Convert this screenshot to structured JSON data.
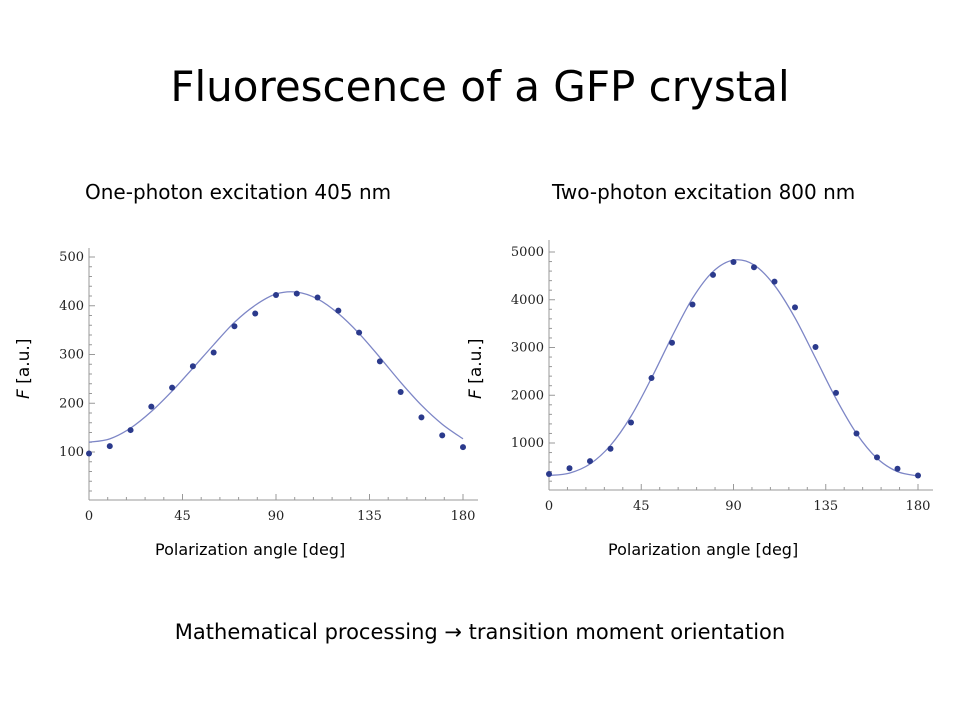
{
  "slide": {
    "title": "Fluorescence of a GFP crystal",
    "footer": "Mathematical processing → transition moment orientation"
  },
  "chart_data": [
    {
      "type": "scatter",
      "title": "One-photon excitation 405 nm",
      "xlabel": "Polarization angle [deg]",
      "ylabel_var": "F",
      "ylabel_unit": "[a.u.]",
      "xlim": [
        0,
        180
      ],
      "ylim": [
        0,
        500
      ],
      "xticks": [
        0,
        45,
        90,
        135,
        180
      ],
      "yticks": [
        100,
        200,
        300,
        400,
        500
      ],
      "grid": false,
      "points": {
        "x": [
          0,
          10,
          20,
          30,
          40,
          50,
          60,
          70,
          80,
          90,
          100,
          110,
          120,
          130,
          140,
          150,
          160,
          170,
          180
        ],
        "y": [
          97,
          112,
          145,
          193,
          232,
          276,
          304,
          358,
          384,
          422,
          425,
          417,
          390,
          345,
          286,
          223,
          171,
          134,
          110
        ]
      },
      "fit_curve": {
        "x": [
          0,
          10,
          20,
          30,
          40,
          50,
          60,
          70,
          80,
          90,
          100,
          110,
          120,
          130,
          140,
          150,
          160,
          170,
          180
        ],
        "y": [
          120,
          127,
          149,
          183,
          225,
          272,
          320,
          366,
          401,
          424,
          428,
          414,
          384,
          343,
          294,
          243,
          196,
          157,
          127
        ]
      },
      "colors": {
        "points": "#2b3a8c",
        "curve": "#7d86c6"
      }
    },
    {
      "type": "scatter",
      "title": "Two-photon excitation 800 nm",
      "xlabel": "Polarization angle [deg]",
      "ylabel_var": "F",
      "ylabel_unit": "[a.u.]",
      "xlim": [
        0,
        180
      ],
      "ylim": [
        0,
        5000
      ],
      "xticks": [
        0,
        45,
        90,
        135,
        180
      ],
      "yticks": [
        1000,
        2000,
        3000,
        4000,
        5000
      ],
      "grid": false,
      "points": {
        "x": [
          0,
          10,
          20,
          30,
          40,
          50,
          60,
          70,
          80,
          90,
          100,
          110,
          120,
          130,
          140,
          150,
          160,
          170,
          180
        ],
        "y": [
          350,
          470,
          620,
          880,
          1430,
          2360,
          3100,
          3900,
          4520,
          4790,
          4680,
          4380,
          3840,
          3010,
          2050,
          1200,
          700,
          460,
          320
        ]
      },
      "fit_curve": {
        "x": [
          0,
          10,
          20,
          30,
          40,
          50,
          60,
          70,
          80,
          90,
          100,
          110,
          120,
          130,
          140,
          150,
          160,
          170,
          180
        ],
        "y": [
          320,
          370,
          560,
          950,
          1560,
          2360,
          3230,
          4030,
          4590,
          4830,
          4730,
          4300,
          3620,
          2780,
          1930,
          1200,
          680,
          400,
          310
        ]
      },
      "colors": {
        "points": "#2b3a8c",
        "curve": "#7d86c6"
      }
    }
  ]
}
